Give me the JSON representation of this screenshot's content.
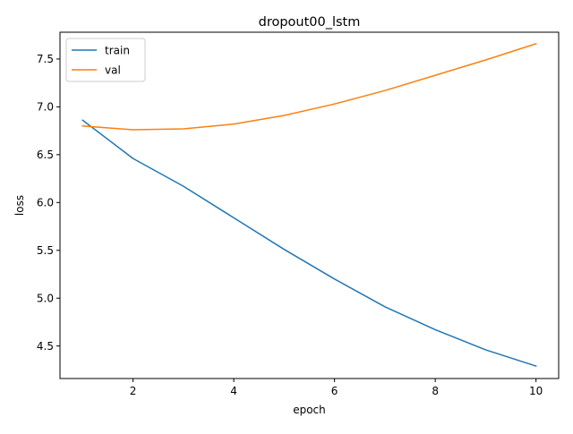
{
  "chart_data": {
    "type": "line",
    "title": "dropout00_lstm",
    "xlabel": "epoch",
    "ylabel": "loss",
    "xlim": [
      0.55,
      10.45
    ],
    "ylim": [
      4.16,
      7.78
    ],
    "x_ticks": [
      2,
      4,
      6,
      8,
      10
    ],
    "y_ticks": [
      4.5,
      5.0,
      5.5,
      6.0,
      6.5,
      7.0,
      7.5
    ],
    "x_tick_labels": [
      "2",
      "4",
      "6",
      "8",
      "10"
    ],
    "y_tick_labels": [
      "4.5",
      "5.0",
      "5.5",
      "6.0",
      "6.5",
      "7.0",
      "7.5"
    ],
    "grid": false,
    "legend_position": "upper-left",
    "x": [
      1,
      2,
      3,
      4,
      5,
      6,
      7,
      8,
      9,
      10
    ],
    "series": [
      {
        "name": "train",
        "color": "#1f77b4",
        "values": [
          6.86,
          6.46,
          6.17,
          5.84,
          5.51,
          5.2,
          4.91,
          4.67,
          4.46,
          4.29
        ]
      },
      {
        "name": "val",
        "color": "#ff7f0e",
        "values": [
          6.8,
          6.76,
          6.77,
          6.82,
          6.91,
          7.03,
          7.17,
          7.33,
          7.49,
          7.66
        ]
      }
    ]
  }
}
